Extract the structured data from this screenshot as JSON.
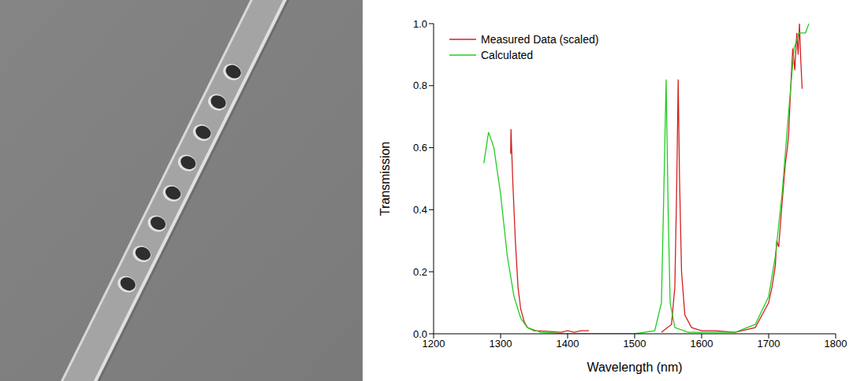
{
  "chart_data": {
    "type": "line",
    "x_label": "Wavelength (nm)",
    "y_label": "Transmission",
    "xlim": [
      1200,
      1800
    ],
    "xticks": [
      1200,
      1300,
      1400,
      1500,
      1600,
      1700,
      1800
    ],
    "ylim": [
      0,
      1.0
    ],
    "yticks": [
      {
        "value": 0,
        "label": "0.0"
      },
      {
        "value": 0.2,
        "label": "0.2"
      },
      {
        "value": 0.4,
        "label": "0.4"
      },
      {
        "value": 0.6,
        "label": "0.6"
      },
      {
        "value": 0.8,
        "label": "0.8"
      },
      {
        "value": 1.0,
        "label": "1.0"
      }
    ],
    "grid": false,
    "legend": "upper left",
    "series": [
      {
        "name": "Measured Data (scaled)",
        "color": "#d42020",
        "x": [
          1315,
          1315.5,
          1318,
          1322,
          1326,
          1330,
          1335,
          1340,
          1350,
          1370,
          1390,
          1400,
          1410,
          1420,
          1432,
          1480,
          1540,
          1555,
          1560,
          1563,
          1565,
          1567,
          1570,
          1575,
          1585,
          1600,
          1620,
          1650,
          1680,
          1695,
          1700,
          1705,
          1710,
          1712,
          1715,
          1720,
          1725,
          1728,
          1730,
          1733,
          1736,
          1739,
          1742,
          1744,
          1746,
          1748,
          1750
        ],
        "values": [
          0.58,
          0.66,
          0.5,
          0.3,
          0.15,
          0.08,
          0.04,
          0.02,
          0.01,
          0.008,
          0.005,
          0.01,
          0.005,
          0.01,
          0.01,
          null,
          0.005,
          0.03,
          0.15,
          0.5,
          0.82,
          0.5,
          0.2,
          0.06,
          0.02,
          0.01,
          0.01,
          0.005,
          0.02,
          0.08,
          0.1,
          0.15,
          0.22,
          0.3,
          0.28,
          0.42,
          0.55,
          0.6,
          0.65,
          0.8,
          0.92,
          0.85,
          0.97,
          0.9,
          1.0,
          0.88,
          0.79
        ]
      },
      {
        "name": "Calculated",
        "color": "#22cc22",
        "x": [
          1275,
          1282,
          1290,
          1300,
          1310,
          1320,
          1330,
          1340,
          1360,
          1400,
          1500,
          1530,
          1540,
          1544,
          1547,
          1550,
          1553,
          1560,
          1580,
          1650,
          1680,
          1700,
          1710,
          1720,
          1730,
          1738,
          1745,
          1755,
          1760
        ],
        "values": [
          0.55,
          0.65,
          0.6,
          0.45,
          0.25,
          0.12,
          0.05,
          0.02,
          0.005,
          0,
          0,
          0.01,
          0.1,
          0.5,
          0.82,
          0.4,
          0.1,
          0.02,
          0.005,
          0.005,
          0.03,
          0.12,
          0.25,
          0.45,
          0.72,
          0.92,
          0.97,
          0.97,
          1.0
        ]
      }
    ]
  }
}
